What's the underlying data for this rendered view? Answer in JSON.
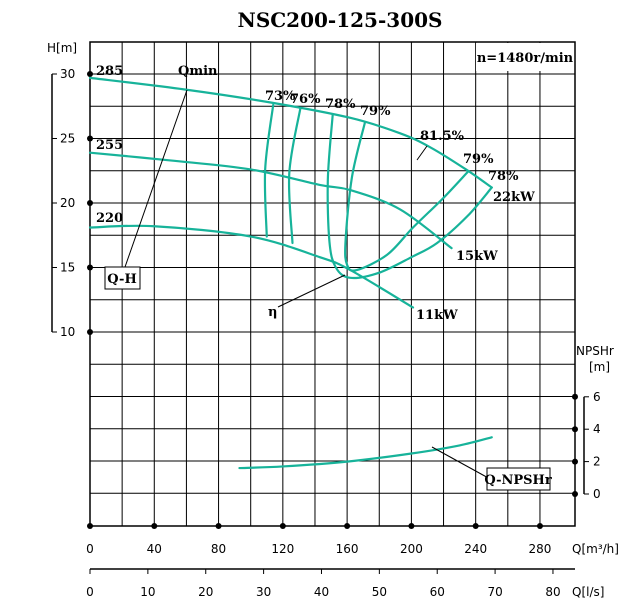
{
  "chart_data": {
    "type": "line",
    "title": "NSC200-125-300S",
    "speed_label": "n=1480r/min",
    "x_axis": {
      "label": "Q[m³/h]",
      "ticks": [
        0,
        40,
        80,
        120,
        160,
        200,
        240,
        280
      ],
      "range": [
        0,
        302
      ],
      "grid_step": 20
    },
    "x2_axis": {
      "label": "Q[l/s]",
      "ticks": [
        0,
        10,
        20,
        30,
        40,
        50,
        60,
        70,
        80
      ]
    },
    "y_axis": {
      "label": "H[m]",
      "ticks": [
        10,
        15,
        20,
        25,
        30
      ],
      "range": [
        -5,
        32.5
      ],
      "grid_step": 2.5
    },
    "y2_axis": {
      "label": "NPSHr\n[m]",
      "label_lines": [
        "NPSHr",
        "[m]"
      ],
      "ticks": [
        0,
        2,
        4,
        6
      ]
    },
    "grid": true,
    "colors": {
      "curve": "#17b39a",
      "grid": "#000000"
    },
    "qh_curves": [
      {
        "name": "285",
        "points": [
          [
            0,
            29.7
          ],
          [
            59,
            28.8
          ],
          [
            112,
            27.8
          ],
          [
            162,
            26.6
          ],
          [
            193,
            25.4
          ],
          [
            212,
            24.3
          ],
          [
            234,
            22.6
          ],
          [
            250,
            21.2
          ]
        ]
      },
      {
        "name": "255",
        "points": [
          [
            0,
            23.9
          ],
          [
            50,
            23.3
          ],
          [
            100,
            22.6
          ],
          [
            143,
            21.4
          ],
          [
            162,
            21.0
          ],
          [
            193,
            19.5
          ],
          [
            225,
            16.5
          ]
        ]
      },
      {
        "name": "220",
        "points": [
          [
            0,
            18.1
          ],
          [
            40,
            18.2
          ],
          [
            100,
            17.4
          ],
          [
            143,
            15.8
          ],
          [
            162,
            14.8
          ],
          [
            201,
            11.9
          ]
        ]
      }
    ],
    "efficiency_curves": [
      {
        "name": "73%",
        "points": [
          [
            114,
            27.6
          ],
          [
            109,
            22.6
          ],
          [
            110,
            17.4
          ]
        ]
      },
      {
        "name": "76%",
        "points": [
          [
            131,
            27.4
          ],
          [
            124,
            22.3
          ],
          [
            126,
            16.9
          ]
        ]
      },
      {
        "name": "78%",
        "points": [
          [
            151,
            26.8
          ],
          [
            148,
            21.8
          ],
          [
            149,
            17
          ],
          [
            153,
            15
          ],
          [
            162,
            14.2
          ],
          [
            180,
            14.6
          ],
          [
            200,
            15.8
          ],
          [
            216,
            16.9
          ],
          [
            235,
            19
          ],
          [
            250,
            21.2
          ]
        ]
      },
      {
        "name": "79%",
        "points": [
          [
            171,
            26.2
          ],
          [
            163,
            22
          ],
          [
            159,
            17
          ],
          [
            160,
            15.2
          ],
          [
            166,
            14.8
          ],
          [
            185,
            16
          ],
          [
            201,
            18.1
          ],
          [
            220,
            20.4
          ],
          [
            235,
            22.4
          ]
        ]
      }
    ],
    "npshr_curve": {
      "name": "Q-NPSHr",
      "points": [
        [
          93,
          1.6
        ],
        [
          120,
          1.7
        ],
        [
          160,
          2.0
        ],
        [
          200,
          2.5
        ],
        [
          230,
          3.0
        ],
        [
          250,
          3.5
        ]
      ]
    },
    "labels": {
      "qmin": "Qmin",
      "qh": "Q-H",
      "eta": "η",
      "npsh": "Q-NPSHr",
      "eff": [
        "73%",
        "76%",
        "78%",
        "79%",
        "81.5%",
        "79%",
        "78%"
      ],
      "power": [
        "22kW",
        "15kW",
        "11kW"
      ],
      "diameters": [
        "285",
        "255",
        "220"
      ]
    }
  }
}
